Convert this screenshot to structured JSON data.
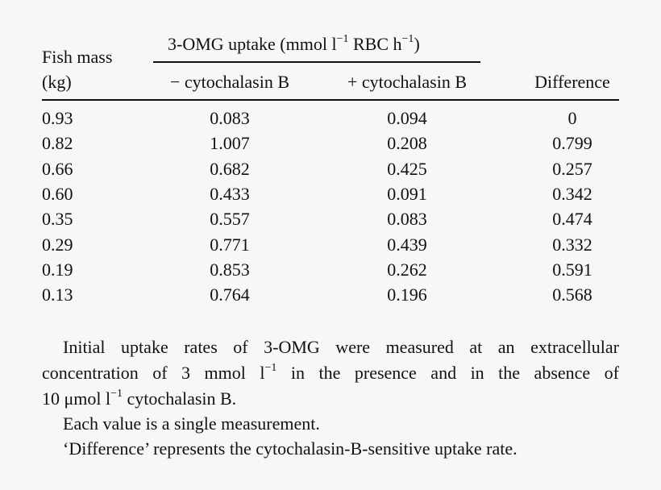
{
  "table": {
    "group_header": {
      "prefix": "3-OMG uptake (mmol l",
      "sup1": "−1",
      "mid": " RBC h",
      "sup2": "−1",
      "suffix": ")"
    },
    "col1_header_line1": "Fish mass",
    "col1_header_line2": "(kg)",
    "col2_header": "− cytochalasin B",
    "col3_header": "+ cytochalasin B",
    "col4_header": "Difference",
    "rows": [
      {
        "mass": "0.93",
        "minus": "0.083",
        "plus": "0.094",
        "diff": "0"
      },
      {
        "mass": "0.82",
        "minus": "1.007",
        "plus": "0.208",
        "diff": "0.799"
      },
      {
        "mass": "0.66",
        "minus": "0.682",
        "plus": "0.425",
        "diff": "0.257"
      },
      {
        "mass": "0.60",
        "minus": "0.433",
        "plus": "0.091",
        "diff": "0.342"
      },
      {
        "mass": "0.35",
        "minus": "0.557",
        "plus": "0.083",
        "diff": "0.474"
      },
      {
        "mass": "0.29",
        "minus": "0.771",
        "plus": "0.439",
        "diff": "0.332"
      },
      {
        "mass": "0.19",
        "minus": "0.853",
        "plus": "0.262",
        "diff": "0.591"
      },
      {
        "mass": "0.13",
        "minus": "0.764",
        "plus": "0.196",
        "diff": "0.568"
      }
    ]
  },
  "notes": {
    "line1": "Initial uptake rates of 3-OMG were measured at an extracellular",
    "line2_a": "concentration of 3 mmol l",
    "line2_sup": "−1",
    "line2_b": " in the presence and in the absence of",
    "line3_a": "10 μmol l",
    "line3_sup": "−1",
    "line3_b": " cytochalasin B.",
    "line4": "Each value is a single measurement.",
    "line5": "‘Difference’ represents the cytochalasin-B-sensitive uptake rate."
  }
}
